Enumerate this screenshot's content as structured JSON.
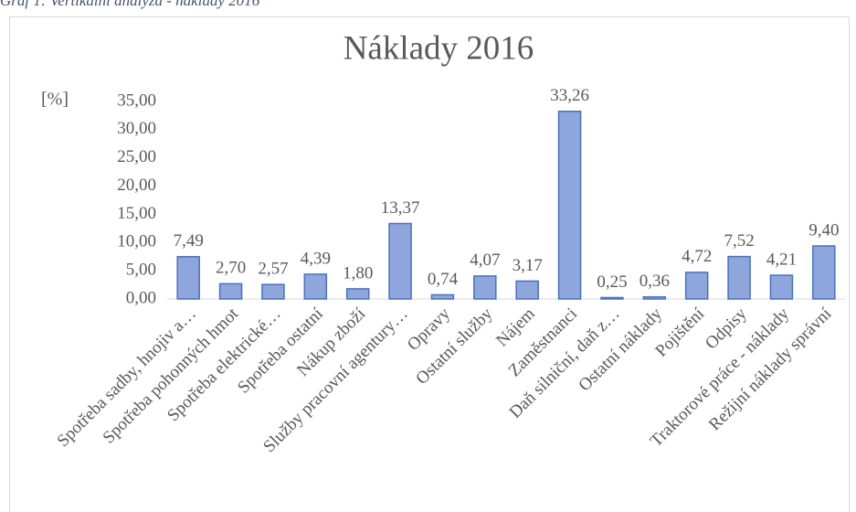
{
  "caption": "Graf 1: Vertikální analýza - náklady 2016",
  "chart_data": {
    "type": "bar",
    "title": "Náklady 2016",
    "y_label": "[%]",
    "categories": [
      "Spotřeba sadby, hnojiv a…",
      "Spotřeba pohonných hmot",
      "Spotřeba elektrické…",
      "Spotřeba ostatní",
      "Nákup zboží",
      "Služby pracovní agentury…",
      "Opravy",
      "Ostatní služby",
      "Nájem",
      "Zaměstnanci",
      "Daň silniční, daň z…",
      "Ostatní náklady",
      "Pojištění",
      "Odpisy",
      "Traktorové práce - náklady",
      "Režijní náklady správní"
    ],
    "values": [
      7.49,
      2.7,
      2.57,
      4.39,
      1.8,
      13.37,
      0.74,
      4.07,
      3.17,
      33.26,
      0.25,
      0.36,
      4.72,
      7.52,
      4.21,
      9.4
    ],
    "value_labels": [
      "7,49",
      "2,70",
      "2,57",
      "4,39",
      "1,80",
      "13,37",
      "0,74",
      "4,07",
      "3,17",
      "33,26",
      "0,25",
      "0,36",
      "4,72",
      "7,52",
      "4,21",
      "9,40"
    ],
    "color": "#8fa6dc",
    "edge_color": "#4472c4",
    "ylim": [
      0,
      35
    ],
    "yticks": [
      {
        "value": 0,
        "label": "0,00"
      },
      {
        "value": 5,
        "label": "5,00"
      },
      {
        "value": 10,
        "label": "10,00"
      },
      {
        "value": 15,
        "label": "15,00"
      },
      {
        "value": 20,
        "label": "20,00"
      },
      {
        "value": 25,
        "label": "25,00"
      },
      {
        "value": 30,
        "label": "30,00"
      },
      {
        "value": 35,
        "label": "35,00"
      }
    ],
    "grid": false
  }
}
